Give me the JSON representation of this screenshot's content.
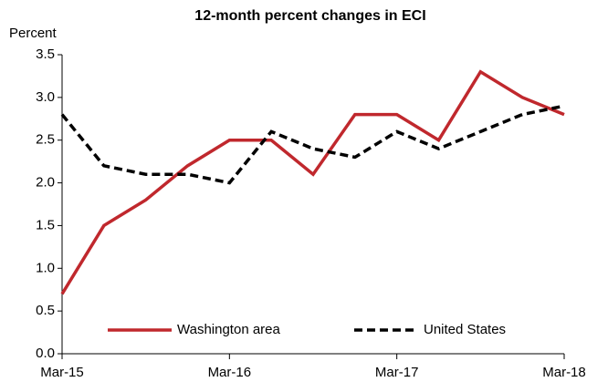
{
  "chart_data": {
    "type": "line",
    "title": "12-month percent changes in ECI",
    "y_label": "Percent",
    "categories": [
      "Mar-15",
      null,
      null,
      null,
      "Mar-16",
      null,
      null,
      null,
      "Mar-17",
      null,
      null,
      null,
      "Mar-18"
    ],
    "series": [
      {
        "name": "Washington area",
        "color": "#c0282d",
        "dash": false,
        "values": [
          0.7,
          1.5,
          1.8,
          2.2,
          2.5,
          2.5,
          2.1,
          2.8,
          2.8,
          2.5,
          3.3,
          3.0,
          2.8
        ]
      },
      {
        "name": "United States",
        "color": "#000000",
        "dash": true,
        "values": [
          2.8,
          2.2,
          2.1,
          2.1,
          2.0,
          2.6,
          2.4,
          2.3,
          2.6,
          2.4,
          2.6,
          2.8,
          2.9
        ]
      }
    ],
    "ylim": [
      0,
      3.5
    ],
    "yticks": [
      {
        "value": 0,
        "label": "0.0"
      },
      0.5,
      {
        "value": 1,
        "label": "1.0"
      },
      1.5,
      {
        "value": 2,
        "label": "2.0"
      },
      2.5,
      {
        "value": 3,
        "label": "3.0"
      },
      3.5
    ],
    "grid": false,
    "legend": "lower center"
  }
}
